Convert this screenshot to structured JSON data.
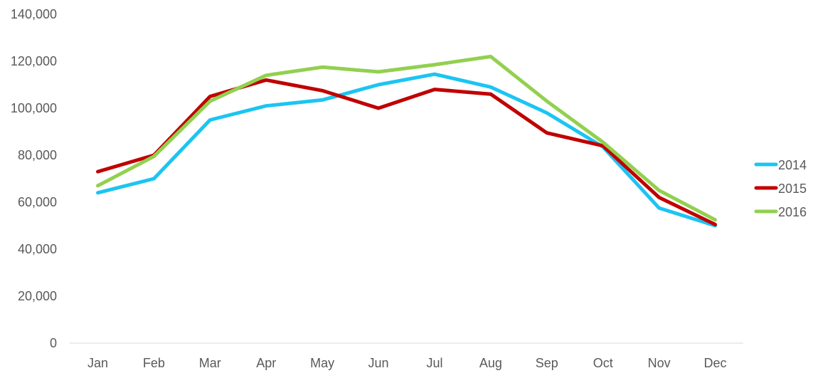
{
  "chart_data": {
    "type": "line",
    "title": "",
    "xlabel": "",
    "ylabel": "",
    "categories": [
      "Jan",
      "Feb",
      "Mar",
      "Apr",
      "May",
      "Jun",
      "Jul",
      "Aug",
      "Sep",
      "Oct",
      "Nov",
      "Dec"
    ],
    "ylim": [
      0,
      140000
    ],
    "yticks": [
      0,
      20000,
      40000,
      60000,
      80000,
      100000,
      120000,
      140000
    ],
    "ytick_labels": [
      "0",
      "20,000",
      "40,000",
      "60,000",
      "80,000",
      "100,000",
      "120,000",
      "140,000"
    ],
    "grid": false,
    "legend_position": "right",
    "series": [
      {
        "name": "2014",
        "color": "#1CC4F2",
        "values": [
          64000,
          70000,
          95000,
          101000,
          103500,
          110000,
          114500,
          109000,
          98000,
          83500,
          57500,
          50000
        ]
      },
      {
        "name": "2015",
        "color": "#C00000",
        "values": [
          73000,
          80000,
          105000,
          112000,
          107500,
          100000,
          108000,
          106000,
          89500,
          84000,
          62000,
          50500
        ]
      },
      {
        "name": "2016",
        "color": "#92D050",
        "values": [
          67000,
          79500,
          103000,
          114000,
          117500,
          115500,
          118500,
          122000,
          103000,
          85500,
          65000,
          52500
        ]
      }
    ]
  }
}
